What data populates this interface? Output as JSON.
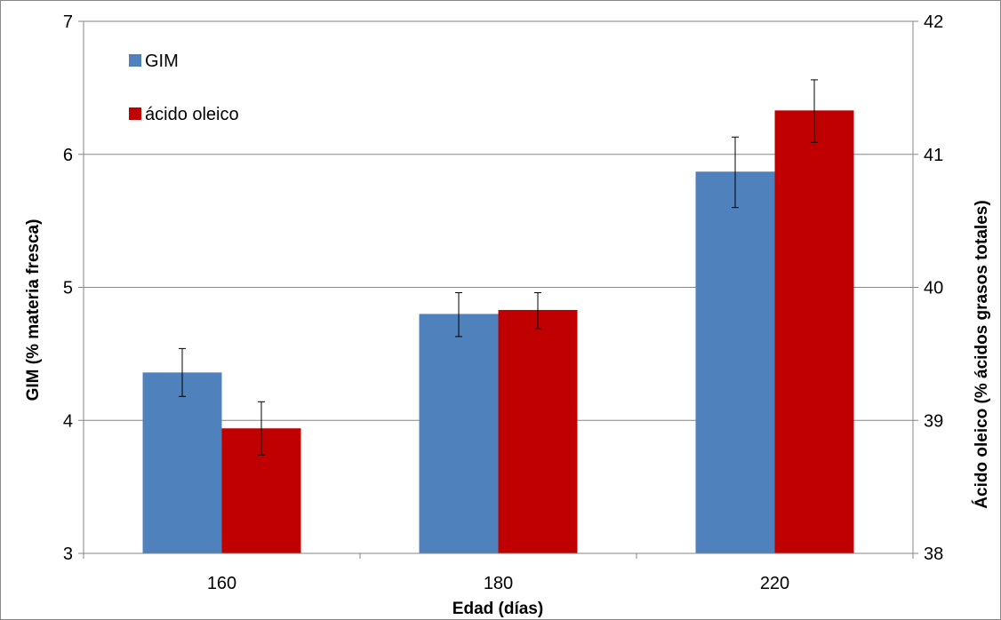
{
  "chart_data": {
    "type": "bar",
    "categories": [
      "160",
      "180",
      "220"
    ],
    "series": [
      {
        "name": "GIM",
        "axis": "left",
        "color": "#4f81bd",
        "values": [
          4.36,
          4.8,
          5.87
        ],
        "error": [
          [
            4.18,
            4.54
          ],
          [
            4.63,
            4.96
          ],
          [
            5.6,
            6.13
          ]
        ]
      },
      {
        "name": "ácido oleico",
        "axis": "right",
        "color": "#c00000",
        "values": [
          38.94,
          39.83,
          41.33
        ],
        "error": [
          [
            38.74,
            39.14
          ],
          [
            39.69,
            39.96
          ],
          [
            41.09,
            41.56
          ]
        ]
      }
    ],
    "xlabel": "Edad (días)",
    "ylabel": "GIM (% materia fresca)",
    "y2label": "Ácido oleico (% ácidos grasos totales)",
    "ylim": [
      3,
      7
    ],
    "y2lim": [
      38,
      42
    ],
    "yticks": [
      "3",
      "4",
      "5",
      "6",
      "7"
    ],
    "y2ticks": [
      "38",
      "39",
      "40",
      "41",
      "42"
    ],
    "grid": true,
    "legend_position": "top-left"
  }
}
